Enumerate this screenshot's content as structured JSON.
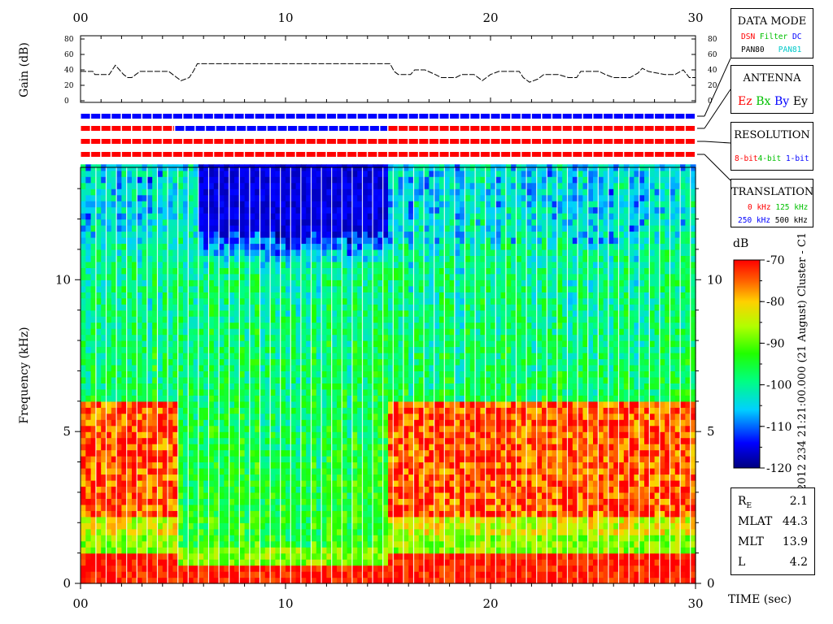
{
  "gain_panel": {
    "ylabel": "Gain (dB)",
    "ticks": [
      "0",
      "20",
      "40",
      "60",
      "80"
    ],
    "series_label": "",
    "trace": [
      [
        0.0,
        38
      ],
      [
        0.6,
        38
      ],
      [
        0.7,
        34
      ],
      [
        1.4,
        34
      ],
      [
        1.6,
        42
      ],
      [
        1.7,
        46
      ],
      [
        1.9,
        40
      ],
      [
        2.1,
        34
      ],
      [
        2.3,
        30
      ],
      [
        2.5,
        30
      ],
      [
        2.7,
        34
      ],
      [
        2.9,
        38
      ],
      [
        4.3,
        38
      ],
      [
        4.5,
        34
      ],
      [
        4.9,
        26
      ],
      [
        5.3,
        30
      ],
      [
        5.5,
        38
      ],
      [
        5.7,
        48
      ],
      [
        15.1,
        48
      ],
      [
        15.3,
        38
      ],
      [
        15.5,
        34
      ],
      [
        16.1,
        34
      ],
      [
        16.3,
        40
      ],
      [
        16.8,
        40
      ],
      [
        17.3,
        34
      ],
      [
        17.6,
        30
      ],
      [
        18.3,
        30
      ],
      [
        18.6,
        34
      ],
      [
        19.2,
        34
      ],
      [
        19.6,
        26
      ],
      [
        20.0,
        34
      ],
      [
        20.4,
        38
      ],
      [
        21.4,
        38
      ],
      [
        21.6,
        30
      ],
      [
        21.9,
        24
      ],
      [
        22.3,
        28
      ],
      [
        22.6,
        34
      ],
      [
        23.3,
        34
      ],
      [
        23.8,
        30
      ],
      [
        24.2,
        30
      ],
      [
        24.4,
        38
      ],
      [
        25.3,
        38
      ],
      [
        25.6,
        34
      ],
      [
        26.0,
        30
      ],
      [
        26.8,
        30
      ],
      [
        27.2,
        36
      ],
      [
        27.4,
        42
      ],
      [
        27.7,
        38
      ],
      [
        28.5,
        34
      ],
      [
        29.0,
        34
      ],
      [
        29.4,
        40
      ],
      [
        29.7,
        30
      ],
      [
        30.0,
        30
      ]
    ]
  },
  "mode_bars": {
    "rows": [
      {
        "name": "data-mode",
        "segments": [
          [
            0,
            30,
            "#0000ff"
          ]
        ]
      },
      {
        "name": "antenna",
        "segments": [
          [
            0,
            4.6,
            "#ff0000"
          ],
          [
            4.6,
            15.0,
            "#0000ff"
          ],
          [
            15.0,
            30,
            "#ff0000"
          ]
        ]
      },
      {
        "name": "resolution",
        "segments": [
          [
            0,
            30,
            "#ff0000"
          ]
        ]
      },
      {
        "name": "translation",
        "segments": [
          [
            0,
            30,
            "#ff0000"
          ]
        ]
      }
    ]
  },
  "chart_data": {
    "type": "heatmap",
    "title": "",
    "xlabel": "TIME (sec)",
    "ylabel": "Frequency (kHz)",
    "xlim": [
      0,
      30
    ],
    "ylim": [
      0,
      13.7
    ],
    "x_ticks": [
      "00",
      "10",
      "20",
      "30"
    ],
    "y_ticks": [
      "0",
      "5",
      "10"
    ],
    "colorbar": {
      "unit": "dB",
      "range": [
        -120,
        -70
      ],
      "ticks": [
        "-70",
        "-80",
        "-90",
        "-100",
        "-110",
        "-120"
      ]
    },
    "segments": [
      {
        "t": [
          0.0,
          4.6
        ],
        "mode": "active",
        "noise_top": 13.7,
        "emission_band": [
          2.0,
          6.0
        ],
        "low_band": [
          0,
          0.9
        ]
      },
      {
        "t": [
          4.6,
          5.6
        ],
        "mode": "quiet",
        "noise_top": 13.7,
        "emission_band": null,
        "low_band": [
          0,
          0.6
        ]
      },
      {
        "t": [
          5.6,
          15.0
        ],
        "mode": "quiet",
        "noise_top": 11.5,
        "emission_band": null,
        "low_band": [
          0,
          0.6
        ]
      },
      {
        "t": [
          15.0,
          30.0
        ],
        "mode": "active",
        "noise_top": 13.7,
        "emission_band": [
          2.0,
          6.0
        ],
        "low_band": [
          0,
          0.9
        ]
      }
    ]
  },
  "legend_boxes": {
    "data_mode": {
      "title": "DATA MODE",
      "line1": [
        {
          "text": "DSN",
          "color": "#ff0000"
        },
        {
          "text": "Filter",
          "color": "#00c000"
        },
        {
          "text": "DC",
          "color": "#0000ff"
        }
      ],
      "line2": [
        {
          "text": "PAN80",
          "color": "#000000"
        },
        {
          "text": "PAN81",
          "color": "#00c8c8"
        }
      ]
    },
    "antenna": {
      "title": "ANTENNA",
      "items": [
        {
          "text": "Ez",
          "color": "#ff0000"
        },
        {
          "text": "Bx",
          "color": "#00c000"
        },
        {
          "text": "By",
          "color": "#0000ff"
        },
        {
          "text": "Ey",
          "color": "#000000"
        }
      ]
    },
    "resolution": {
      "title": "RESOLUTION",
      "items": [
        {
          "text": "8-bit",
          "color": "#ff0000"
        },
        {
          "text": "4-bit",
          "color": "#00c000"
        },
        {
          "text": "1-bit",
          "color": "#0000ff"
        }
      ]
    },
    "translation": {
      "title": "TRANSLATION",
      "line1": [
        {
          "text": "0 kHz",
          "color": "#ff0000"
        },
        {
          "text": "125 kHz",
          "color": "#00c000"
        }
      ],
      "line2": [
        {
          "text": "250 kHz",
          "color": "#0000ff"
        },
        {
          "text": "500 kHz",
          "color": "#000000"
        }
      ]
    }
  },
  "side_label": "2012 234 21:21:00.000 (21 August)   Cluster - C1",
  "ephemeris": [
    {
      "label": "R",
      "sub": "E",
      "value": "2.1"
    },
    {
      "label": "MLAT",
      "sub": "",
      "value": "44.3"
    },
    {
      "label": "MLT",
      "sub": "",
      "value": "13.9"
    },
    {
      "label": "L",
      "sub": "",
      "value": "4.2"
    }
  ]
}
